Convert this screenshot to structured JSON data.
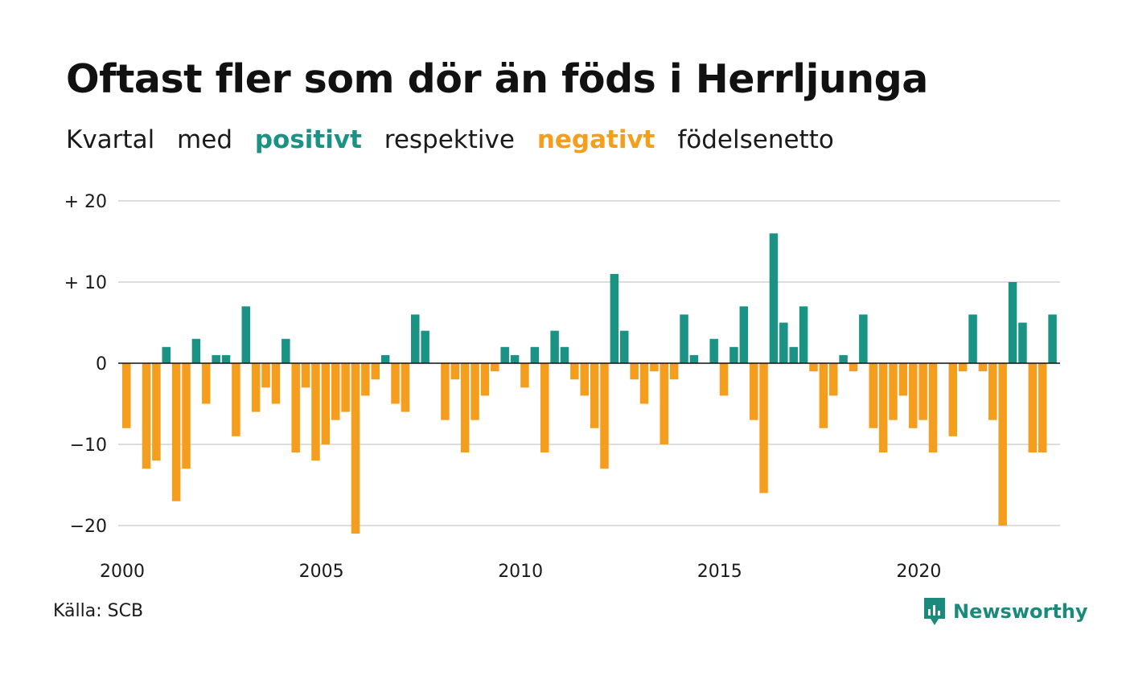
{
  "title": "Oftast fler som dör än föds i Herrljunga",
  "subtitle": {
    "part1": "Kvartal",
    "part2": "med",
    "positive": "positivt",
    "part3": "respektive",
    "negative": "negativt",
    "part4": "födelsenetto"
  },
  "source": "Källa: SCB",
  "brand": {
    "name": "Newsworthy",
    "icon": "newsworthy-logo-icon"
  },
  "colors": {
    "positive": "#1a9385",
    "negative": "#f59e1d",
    "grid": "#dddddd",
    "zero": "#111111"
  },
  "chart_data": {
    "type": "bar",
    "x_start": 2000,
    "x_end": 2023.75,
    "x_ticks": [
      {
        "value": 2000,
        "label": "2000"
      },
      {
        "value": 2005,
        "label": "2005"
      },
      {
        "value": 2010,
        "label": "2010"
      },
      {
        "value": 2015,
        "label": "2015"
      },
      {
        "value": 2020,
        "label": "2020"
      }
    ],
    "y_ticks": [
      {
        "value": 20,
        "label": "+ 20"
      },
      {
        "value": 10,
        "label": "+ 10"
      },
      {
        "value": 0,
        "label": "0"
      },
      {
        "value": -10,
        "label": "−10"
      },
      {
        "value": -20,
        "label": "−20"
      }
    ],
    "ylim": [
      -21,
      20
    ],
    "grid": true,
    "values": [
      -8,
      0,
      -13,
      -12,
      2,
      -17,
      -13,
      3,
      -5,
      1,
      1,
      -9,
      7,
      -6,
      -3,
      -5,
      3,
      -11,
      -3,
      -12,
      -10,
      -7,
      -6,
      -21,
      -4,
      -2,
      1,
      -5,
      -6,
      6,
      4,
      0,
      -7,
      -2,
      -11,
      -7,
      -4,
      -1,
      2,
      1,
      -3,
      2,
      -11,
      4,
      2,
      -2,
      -4,
      -8,
      -13,
      11,
      4,
      -2,
      -5,
      -1,
      -10,
      -2,
      6,
      1,
      0,
      3,
      -4,
      2,
      7,
      -7,
      -16,
      16,
      5,
      2,
      7,
      -1,
      -8,
      -4,
      1,
      -1,
      6,
      -8,
      -11,
      -7,
      -4,
      -8,
      -7,
      -11,
      0,
      -9,
      -1,
      6,
      -1,
      -7,
      -20,
      10,
      5,
      -11,
      -11,
      6
    ]
  }
}
